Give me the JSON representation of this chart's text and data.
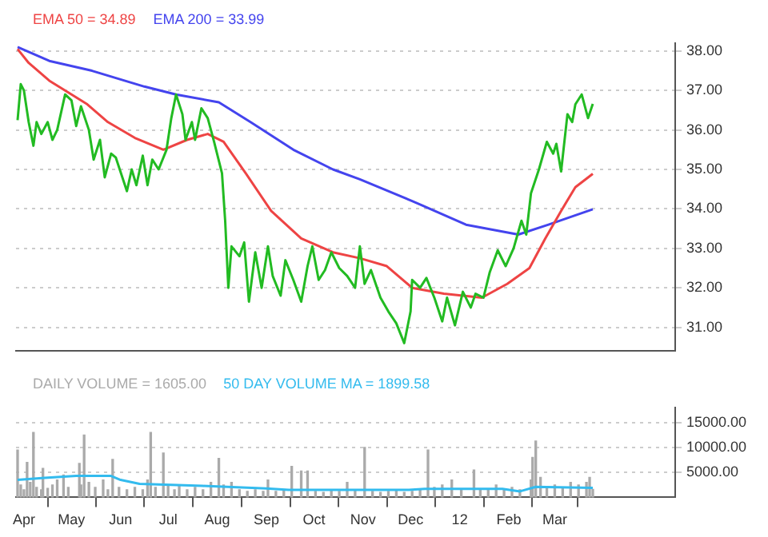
{
  "chart_data": [
    {
      "type": "line",
      "legend": "top left",
      "grid": "y",
      "marker": "none",
      "tick_labels": "y",
      "xlim": [
        "2011-03-27",
        "2012-05-16"
      ],
      "xticks": [
        {
          "value": "2011-04-01",
          "label": null
        },
        {
          "value": "2011-05-01",
          "label": null
        },
        {
          "value": "2011-06-01",
          "label": null
        },
        {
          "value": "2011-07-01",
          "label": null
        },
        {
          "value": "2011-08-01",
          "label": null
        },
        {
          "value": "2011-09-01",
          "label": null
        },
        {
          "value": "2011-10-01",
          "label": null
        },
        {
          "value": "2011-11-01",
          "label": null
        },
        {
          "value": "2011-12-01",
          "label": null
        },
        {
          "value": "2012-01-01",
          "label": null
        },
        {
          "value": "2012-02-01",
          "label": null
        },
        {
          "value": "2012-03-01",
          "label": null
        }
      ],
      "ylim": [
        30.4,
        38.2
      ],
      "yticks": [
        {
          "value": 31,
          "label": "31.00"
        },
        {
          "value": 32,
          "label": "32.00"
        },
        {
          "value": 33,
          "label": "33.00"
        },
        {
          "value": 34,
          "label": "34.00"
        },
        {
          "value": 35,
          "label": "35.00"
        },
        {
          "value": 36,
          "label": "36.00"
        },
        {
          "value": 37,
          "label": "37.00"
        },
        {
          "value": 38,
          "label": "38.00"
        }
      ],
      "series": [
        {
          "color": "#22bb22",
          "x": [
            "2011-03-28",
            "2011-03-30",
            "2011-04-01",
            "2011-04-04",
            "2011-04-07",
            "2011-04-09",
            "2011-04-12",
            "2011-04-16",
            "2011-04-19",
            "2011-04-22",
            "2011-04-27",
            "2011-05-01",
            "2011-05-04",
            "2011-05-07",
            "2011-05-12",
            "2011-05-15",
            "2011-05-19",
            "2011-05-22",
            "2011-05-26",
            "2011-05-29",
            "2011-06-05",
            "2011-06-08",
            "2011-06-11",
            "2011-06-15",
            "2011-06-18",
            "2011-06-21",
            "2011-06-25",
            "2011-06-30",
            "2011-07-03",
            "2011-07-06",
            "2011-07-10",
            "2011-07-12",
            "2011-07-16",
            "2011-07-18",
            "2011-07-22",
            "2011-07-26",
            "2011-07-30",
            "2011-08-04",
            "2011-08-06",
            "2011-08-08",
            "2011-08-10",
            "2011-08-15",
            "2011-08-18",
            "2011-08-21",
            "2011-08-25",
            "2011-08-29",
            "2011-09-02",
            "2011-09-05",
            "2011-09-10",
            "2011-09-13",
            "2011-09-18",
            "2011-09-23",
            "2011-09-27",
            "2011-09-30",
            "2011-10-04",
            "2011-10-08",
            "2011-10-12",
            "2011-10-17",
            "2011-10-22",
            "2011-10-27",
            "2011-10-30",
            "2011-11-02",
            "2011-11-06",
            "2011-11-12",
            "2011-11-17",
            "2011-11-22",
            "2011-11-27",
            "2011-12-01",
            "2011-12-02",
            "2011-12-07",
            "2011-12-11",
            "2011-12-16",
            "2011-12-21",
            "2011-12-24",
            "2011-12-29",
            "2012-01-03",
            "2012-01-08",
            "2012-01-11",
            "2012-01-16",
            "2012-01-20",
            "2012-01-25",
            "2012-01-30",
            "2012-02-04",
            "2012-02-09",
            "2012-02-12",
            "2012-02-15",
            "2012-02-20",
            "2012-02-25",
            "2012-02-29",
            "2012-03-02",
            "2012-03-05",
            "2012-03-09",
            "2012-03-12",
            "2012-03-14",
            "2012-03-18",
            "2012-03-22",
            "2012-03-25"
          ],
          "values": [
            36.25,
            37.16,
            37.0,
            36.2,
            35.6,
            36.2,
            35.9,
            36.2,
            35.75,
            36.0,
            36.9,
            36.75,
            36.1,
            36.6,
            36.0,
            35.25,
            35.75,
            34.8,
            35.4,
            35.3,
            34.45,
            35.0,
            34.6,
            35.35,
            34.6,
            35.25,
            35.0,
            35.5,
            36.3,
            36.9,
            36.4,
            35.75,
            36.2,
            35.75,
            36.55,
            36.3,
            35.7,
            34.9,
            33.7,
            32.0,
            33.05,
            32.8,
            33.15,
            31.65,
            32.9,
            32.0,
            33.05,
            32.3,
            31.8,
            32.7,
            32.2,
            31.65,
            32.55,
            33.05,
            32.2,
            32.45,
            32.9,
            32.5,
            32.3,
            32.0,
            33.05,
            32.1,
            32.45,
            31.75,
            31.4,
            31.1,
            30.6,
            31.4,
            32.2,
            32.0,
            32.25,
            31.75,
            31.15,
            31.75,
            31.05,
            31.9,
            31.5,
            31.85,
            31.75,
            32.4,
            32.95,
            32.55,
            33.0,
            33.7,
            33.35,
            34.4,
            35.0,
            35.7,
            35.4,
            35.65,
            34.95,
            36.4,
            36.2,
            36.65,
            36.9,
            36.3,
            36.66
          ]
        },
        {
          "name": "EMA 50 = 34.89",
          "color": "#ee4444",
          "x": [
            "2011-03-28",
            "2011-04-04",
            "2011-04-17",
            "2011-04-27",
            "2011-05-11",
            "2011-05-24",
            "2011-06-10",
            "2011-06-28",
            "2011-07-13",
            "2011-07-26",
            "2011-08-05",
            "2011-08-19",
            "2011-09-04",
            "2011-09-23",
            "2011-10-13",
            "2011-10-30",
            "2011-11-16",
            "2011-12-02",
            "2011-12-22",
            "2012-01-15",
            "2012-01-31",
            "2012-02-14",
            "2012-02-24",
            "2012-03-05",
            "2012-03-14",
            "2012-03-25"
          ],
          "values": [
            38.05,
            37.7,
            37.25,
            37.0,
            36.65,
            36.2,
            35.8,
            35.5,
            35.75,
            35.9,
            35.7,
            34.9,
            33.95,
            33.25,
            32.9,
            32.75,
            32.55,
            32.0,
            31.85,
            31.75,
            32.1,
            32.5,
            33.25,
            33.95,
            34.55,
            34.89
          ]
        },
        {
          "name": "EMA 200 = 33.99",
          "color": "#4444ee",
          "x": [
            "2011-03-28",
            "2011-04-17",
            "2011-05-14",
            "2011-06-16",
            "2011-07-06",
            "2011-08-02",
            "2011-08-22",
            "2011-09-18",
            "2011-10-13",
            "2011-10-30",
            "2011-12-02",
            "2012-01-05",
            "2012-02-07",
            "2012-02-26",
            "2012-03-25"
          ],
          "values": [
            38.1,
            37.75,
            37.5,
            37.1,
            36.9,
            36.7,
            36.2,
            35.5,
            35.0,
            34.75,
            34.2,
            33.6,
            33.35,
            33.6,
            33.99
          ]
        }
      ]
    },
    {
      "type": "bar",
      "legend": "top left",
      "grid": "y",
      "marker": "none",
      "xlim": [
        "2011-03-27",
        "2012-05-16"
      ],
      "xticks": [
        {
          "value": "2011-04-01",
          "label": "Apr"
        },
        {
          "value": "2011-05-01",
          "label": "May"
        },
        {
          "value": "2011-06-01",
          "label": "Jun"
        },
        {
          "value": "2011-07-01",
          "label": "Jul"
        },
        {
          "value": "2011-08-01",
          "label": "Aug"
        },
        {
          "value": "2011-09-01",
          "label": "Sep"
        },
        {
          "value": "2011-10-01",
          "label": "Oct"
        },
        {
          "value": "2011-11-01",
          "label": "Nov"
        },
        {
          "value": "2011-12-01",
          "label": "Dec"
        },
        {
          "value": "2012-01-01",
          "label": "12"
        },
        {
          "value": "2012-02-01",
          "label": "Feb"
        },
        {
          "value": "2012-03-01",
          "label": "Mar"
        }
      ],
      "ylim": [
        0,
        18000
      ],
      "yticks": [
        {
          "value": 5000,
          "label": "5000.00"
        },
        {
          "value": 10000,
          "label": "10000.00"
        },
        {
          "value": 15000,
          "label": "15000.00"
        }
      ],
      "series": [
        {
          "type": "bar",
          "name": "DAILY VOLUME = 1605.00",
          "color": "#aaaaaa",
          "x": [
            "2011-03-28",
            "2011-03-30",
            "2011-04-01",
            "2011-04-03",
            "2011-04-05",
            "2011-04-07",
            "2011-04-09",
            "2011-04-12",
            "2011-04-13",
            "2011-04-16",
            "2011-04-19",
            "2011-04-22",
            "2011-04-26",
            "2011-04-29",
            "2011-05-06",
            "2011-05-07",
            "2011-05-09",
            "2011-05-12",
            "2011-05-16",
            "2011-05-21",
            "2011-05-24",
            "2011-05-27",
            "2011-05-31",
            "2011-06-05",
            "2011-06-10",
            "2011-06-15",
            "2011-06-18",
            "2011-06-20",
            "2011-06-23",
            "2011-06-28",
            "2011-07-01",
            "2011-07-05",
            "2011-07-08",
            "2011-07-13",
            "2011-07-18",
            "2011-07-23",
            "2011-07-28",
            "2011-08-02",
            "2011-08-05",
            "2011-08-10",
            "2011-08-15",
            "2011-08-20",
            "2011-08-25",
            "2011-08-30",
            "2011-09-02",
            "2011-09-07",
            "2011-09-12",
            "2011-09-17",
            "2011-09-22",
            "2011-09-23",
            "2011-09-27",
            "2011-10-02",
            "2011-10-07",
            "2011-10-12",
            "2011-10-17",
            "2011-10-22",
            "2011-10-27",
            "2011-11-02",
            "2011-11-07",
            "2011-11-12",
            "2011-11-17",
            "2011-11-22",
            "2011-11-27",
            "2011-12-02",
            "2011-12-07",
            "2011-12-12",
            "2011-12-16",
            "2011-12-21",
            "2011-12-27",
            "2012-01-02",
            "2012-01-10",
            "2012-01-14",
            "2012-01-19",
            "2012-01-24",
            "2012-01-29",
            "2012-02-03",
            "2012-02-08",
            "2012-02-15",
            "2012-02-16",
            "2012-02-18",
            "2012-02-21",
            "2012-02-25",
            "2012-03-01",
            "2012-03-06",
            "2012-03-11",
            "2012-03-16",
            "2012-03-21",
            "2012-03-23",
            "2012-03-25"
          ],
          "values": [
            9500,
            2500,
            1500,
            7000,
            3000,
            13000,
            2000,
            1500,
            5800,
            1800,
            2500,
            3500,
            4500,
            2000,
            6800,
            2500,
            12500,
            3000,
            2000,
            3500,
            1500,
            7600,
            2000,
            1500,
            2000,
            1500,
            3500,
            13000,
            2000,
            8900,
            2500,
            1500,
            2500,
            1500,
            2000,
            1500,
            3000,
            7800,
            2500,
            3000,
            1500,
            1200,
            1500,
            1200,
            3500,
            1200,
            1500,
            6200,
            null,
            5300,
            5300,
            1200,
            1000,
            1500,
            1200,
            3000,
            1500,
            10000,
            1200,
            1000,
            1200,
            1500,
            1000,
            1200,
            1500,
            9500,
            2000,
            2500,
            3500,
            1500,
            5500,
            1500,
            1500,
            2500,
            1500,
            2000,
            1500,
            3500,
            8000,
            11300,
            4000,
            2000,
            2500,
            2000,
            3000,
            2500,
            3000,
            4000,
            1600
          ]
        },
        {
          "type": "line",
          "name": "50 DAY VOLUME MA = 1899.58",
          "color": "#33bbee",
          "x": [
            "2011-03-28",
            "2011-04-14",
            "2011-05-04",
            "2011-05-26",
            "2011-06-01",
            "2011-06-13",
            "2011-07-23",
            "2011-09-01",
            "2011-09-15",
            "2011-11-30",
            "2011-12-10",
            "2012-01-28",
            "2012-02-08",
            "2012-02-18",
            "2012-03-25"
          ],
          "values": [
            3500,
            3900,
            4300,
            4300,
            3500,
            2700,
            2300,
            1800,
            1500,
            1500,
            1700,
            1700,
            1200,
            2100,
            1900
          ]
        }
      ]
    }
  ]
}
